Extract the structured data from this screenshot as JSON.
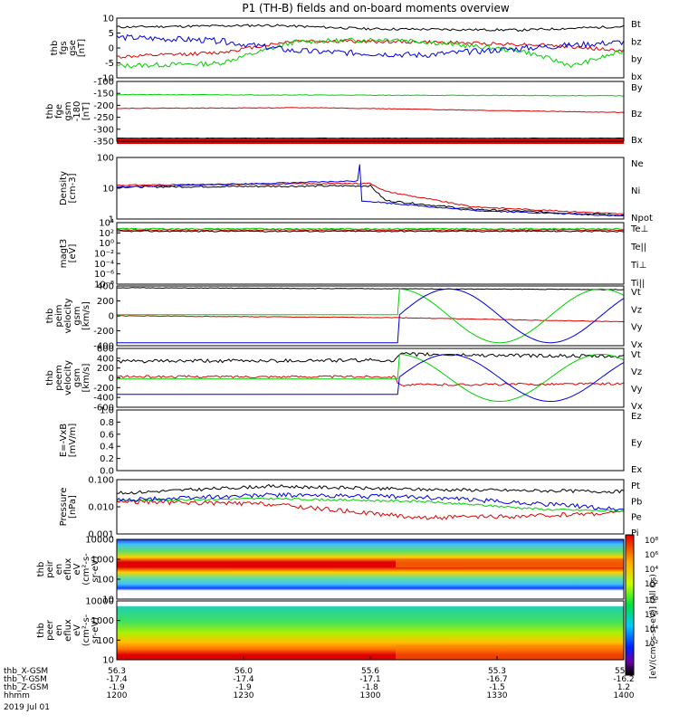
{
  "title": "P1 (TH-B) fields and on-board moments overview",
  "colors": {
    "black": "#000000",
    "red": "#e00000",
    "green": "#00d000",
    "blue": "#0000e0"
  },
  "panels": [
    {
      "id": "fgs-gse",
      "ylabel": [
        "thb",
        "fgs",
        "gse",
        "[nT]"
      ],
      "ticks": [
        "10",
        "5",
        "0",
        "-5",
        "-10"
      ],
      "legend": [
        {
          "label": "Bt",
          "color": "black"
        },
        {
          "label": "bz",
          "color": "red"
        },
        {
          "label": "by",
          "color": "green"
        },
        {
          "label": "bx",
          "color": "blue"
        }
      ]
    },
    {
      "id": "fge-gsm",
      "ylabel": [
        "thb",
        "fge",
        "gsm",
        "-180",
        "[nT]"
      ],
      "ticks": [
        "-100",
        "-150",
        "-200",
        "-250",
        "-300",
        "-350"
      ],
      "legend": [
        {
          "label": "By",
          "color": "green"
        },
        {
          "label": "Bz",
          "color": "red"
        },
        {
          "label": "Bx",
          "color": "black"
        }
      ]
    },
    {
      "id": "density",
      "ylabel": [
        "Density",
        "[cm-3]"
      ],
      "ticks": [
        "100",
        "10",
        "1"
      ],
      "legend": [
        {
          "label": "Ne",
          "color": "red"
        },
        {
          "label": "Ni",
          "color": "black"
        },
        {
          "label": "Npot",
          "color": "blue"
        }
      ]
    },
    {
      "id": "temperature",
      "ylabel": [
        "magt3",
        "[eV]"
      ],
      "ticks": [
        "10⁴",
        "10²",
        "10⁰",
        "10⁻²",
        "10⁻⁴",
        "10⁻⁶",
        "10⁻⁸"
      ],
      "legend": [
        {
          "label": "Te⊥",
          "color": "red"
        },
        {
          "label": "Te||",
          "color": "black"
        },
        {
          "label": "Ti⊥",
          "color": "green"
        },
        {
          "label": "Ti||",
          "color": "green"
        }
      ]
    },
    {
      "id": "peim-velocity",
      "ylabel": [
        "thb",
        "peim",
        "velocity",
        "gsm",
        "[km/s]"
      ],
      "ticks": [
        "400",
        "200",
        "0",
        "-200",
        "-400"
      ],
      "legend": [
        {
          "label": "Vt",
          "color": "black"
        },
        {
          "label": "Vz",
          "color": "red"
        },
        {
          "label": "Vy",
          "color": "green"
        },
        {
          "label": "Vx",
          "color": "blue"
        }
      ]
    },
    {
      "id": "peem-velocity",
      "ylabel": [
        "thb",
        "peem",
        "velocity",
        "gsm",
        "[km/s]"
      ],
      "ticks": [
        "600",
        "400",
        "200",
        "0",
        "-200",
        "-400",
        "-600"
      ],
      "legend": [
        {
          "label": "Vt",
          "color": "black"
        },
        {
          "label": "Vz",
          "color": "red"
        },
        {
          "label": "Vy",
          "color": "green"
        },
        {
          "label": "Vx",
          "color": "blue"
        }
      ]
    },
    {
      "id": "efield",
      "ylabel": [
        "E=-VxB",
        "[mV/m]"
      ],
      "ticks": [
        "1.0",
        "0.8",
        "0.6",
        "0.4",
        "0.2",
        "0.0"
      ],
      "legend": [
        {
          "label": "Ez",
          "color": "red"
        },
        {
          "label": "Ey",
          "color": "green"
        },
        {
          "label": "Ex",
          "color": "blue"
        }
      ]
    },
    {
      "id": "pressure",
      "ylabel": [
        "Pressure",
        "[nPa]"
      ],
      "ticks": [
        "0.100",
        "0.010",
        "0.001"
      ],
      "legend": [
        {
          "label": "Pt",
          "color": "black"
        },
        {
          "label": "Pb",
          "color": "red"
        },
        {
          "label": "Pe",
          "color": "green"
        },
        {
          "label": "Pi",
          "color": "blue"
        }
      ]
    },
    {
      "id": "peir-spectrogram",
      "ylabel": [
        "thb",
        "peir",
        "en",
        "eflux",
        "eV",
        "(cm²-s-",
        "sr-eV)"
      ],
      "ticks": [
        "10000",
        "1000",
        "100",
        "10"
      ],
      "legend": []
    },
    {
      "id": "peer-spectrogram",
      "ylabel": [
        "thb",
        "peer",
        "en",
        "eflux",
        "eV",
        "(cm²-s-",
        "sr-eV)"
      ],
      "ticks": [
        "10000",
        "1000",
        "100",
        "10"
      ],
      "legend": []
    }
  ],
  "colorbar": {
    "label": "[eV/(cm²-s-sr-eV)] (All Qs)",
    "ticks_top": [
      "10⁸",
      "10⁶",
      "10⁴",
      "10²"
    ],
    "ticks_bottom": [
      "10⁸",
      "10⁶",
      "10⁴",
      "10²"
    ]
  },
  "xaxis": {
    "rows": [
      {
        "label": "thb_X-GSM",
        "values": [
          "56.3",
          "56.0",
          "55.6",
          "55.3",
          "55.2"
        ]
      },
      {
        "label": "thb_Y-GSM",
        "values": [
          "-17.4",
          "-17.4",
          "-17.1",
          "-16.7",
          "-16.2"
        ]
      },
      {
        "label": "thb_Z-GSM",
        "values": [
          "-1.9",
          "-1.9",
          "-1.8",
          "-1.5",
          "1.2"
        ]
      },
      {
        "label": "hhmm",
        "values": [
          "1200",
          "1230",
          "1300",
          "1330",
          "1400"
        ]
      }
    ],
    "date": "2019 Jul 01"
  },
  "chart_data": [
    {
      "type": "line",
      "title": "P1 (TH-B) fields and on-board moments overview",
      "x": [
        "1200",
        "1230",
        "1300",
        "1330",
        "1400"
      ],
      "ylabel": "thb fgs gse [nT]",
      "ylim": [
        -10,
        10
      ],
      "series": [
        {
          "name": "Bt",
          "values": [
            7,
            6,
            6,
            5,
            7
          ]
        },
        {
          "name": "bz",
          "values": [
            -3,
            0,
            2,
            2,
            -1
          ]
        },
        {
          "name": "by",
          "values": [
            -6,
            -5,
            2,
            3,
            -3
          ]
        },
        {
          "name": "bx",
          "values": [
            3,
            1,
            -2,
            -1,
            2
          ]
        }
      ]
    },
    {
      "type": "line",
      "ylabel": "thb fge gsm -180 [nT]",
      "ylim": [
        -360,
        -90
      ],
      "series": [
        {
          "name": "By",
          "values": [
            -153,
            -152,
            -152,
            -153,
            -154
          ]
        },
        {
          "name": "Bz",
          "values": [
            -210,
            -207,
            -210,
            -215,
            -220
          ]
        },
        {
          "name": "Bx",
          "values": [
            -348,
            -348,
            -348,
            -348,
            -348
          ]
        }
      ]
    },
    {
      "type": "line",
      "ylabel": "Density [cm-3]",
      "ylim": [
        1,
        200
      ],
      "series": [
        {
          "name": "Ne",
          "values": [
            12,
            13,
            8,
            2,
            2
          ]
        },
        {
          "name": "Ni",
          "values": [
            11,
            12,
            2,
            2,
            2
          ]
        },
        {
          "name": "Npot",
          "values": [
            10,
            13,
            200,
            2,
            2
          ]
        }
      ]
    },
    {
      "type": "line",
      "ylabel": "peim velocity gsm [km/s]",
      "ylim": [
        -400,
        400
      ],
      "series": [
        {
          "name": "Vt",
          "values": [
            400,
            400,
            400,
            380,
            350
          ]
        },
        {
          "name": "Vz",
          "values": [
            0,
            0,
            -20,
            -60,
            -100
          ]
        },
        {
          "name": "Vy",
          "values": [
            0,
            0,
            330,
            -330,
            330
          ]
        },
        {
          "name": "Vx",
          "values": [
            -380,
            -380,
            0,
            330,
            -330
          ]
        }
      ]
    },
    {
      "type": "line",
      "ylabel": "peem velocity gsm [km/s]",
      "ylim": [
        -600,
        600
      ],
      "series": [
        {
          "name": "Vt",
          "values": [
            350,
            420,
            450,
            450,
            420
          ]
        },
        {
          "name": "Vz",
          "values": [
            0,
            0,
            -150,
            -200,
            -150
          ]
        },
        {
          "name": "Vy",
          "values": [
            -50,
            -50,
            450,
            -400,
            400
          ]
        },
        {
          "name": "Vx",
          "values": [
            -330,
            -330,
            -100,
            450,
            -400
          ]
        }
      ]
    },
    {
      "type": "line",
      "ylabel": "Pressure [nPa]",
      "ylim": [
        0.001,
        0.1
      ],
      "series": [
        {
          "name": "Pt",
          "values": [
            0.025,
            0.05,
            0.035,
            0.03,
            0.03
          ]
        },
        {
          "name": "Pb",
          "values": [
            0.02,
            0.012,
            0.005,
            0.005,
            0.006
          ]
        },
        {
          "name": "Pe",
          "values": [
            0.015,
            0.02,
            0.02,
            0.01,
            0.007
          ]
        },
        {
          "name": "Pi",
          "values": [
            0.015,
            0.03,
            0.02,
            0.015,
            0.007
          ]
        }
      ]
    }
  ]
}
